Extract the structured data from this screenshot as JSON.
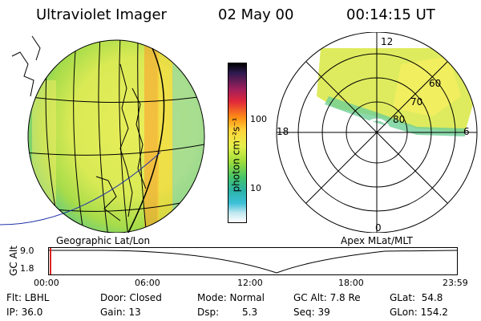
{
  "header": {
    "instrument": "Ultraviolet Imager",
    "date": "02 May 00",
    "time": "00:14:15 UT"
  },
  "panels": {
    "geographic_label": "Geographic Lat/Lon",
    "apex_label": "Apex MLat/MLT"
  },
  "colorbar": {
    "label": "photon cm⁻²s⁻¹",
    "ticks": [
      "100",
      "10"
    ],
    "colors": [
      "#000000",
      "#2d1a4f",
      "#9c1f5b",
      "#e0283a",
      "#ff8c14",
      "#ffd43a",
      "#e6f04a",
      "#9ddd3a",
      "#43c36b",
      "#2bb3a8",
      "#3cc0d8",
      "#bfe8f0",
      "#ffffff"
    ]
  },
  "polar": {
    "mlt_labels": {
      "top": "12",
      "left": "18",
      "right": "6",
      "bottom": "0"
    },
    "lat_labels": [
      "60",
      "70",
      "80"
    ]
  },
  "timeline": {
    "ylabel": "GC Alt",
    "yticks": [
      "9.0",
      "1.8"
    ],
    "xticks": [
      "00:00",
      "06:00",
      "12:00",
      "18:00",
      "23:59"
    ]
  },
  "status": {
    "flt": "Flt: LBHL",
    "ip": "IP: 36.0",
    "door": "Door: Closed",
    "gain": "Gain: 13",
    "mode": "Mode: Normal",
    "dsp_label": "Dsp:",
    "dsp_value": "5.3",
    "gcalt": "GC Alt: 7.8 Re",
    "seq": "Seq: 39",
    "glat": "GLat:  54.8",
    "glon": "GLon: 154.2"
  }
}
